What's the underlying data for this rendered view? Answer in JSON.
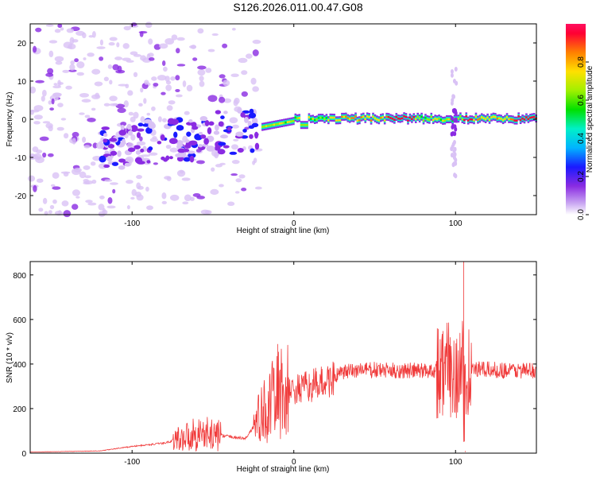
{
  "title": "S126.2026.011.00.47.G08",
  "colors": {
    "snr_line": "#f03a3a",
    "axes": "#000000"
  },
  "chart_data": [
    {
      "type": "heatmap",
      "name": "spectrogram",
      "xlabel": "Height of straight line (km)",
      "ylabel": "Frequency (Hz)",
      "xlim": [
        -163,
        150
      ],
      "ylim": [
        -25,
        25
      ],
      "xticks": [
        "-100",
        "0",
        "100"
      ],
      "xtick_values": [
        -100,
        0,
        100
      ],
      "yticks": [
        "-20",
        "-10",
        "0",
        "10",
        "20"
      ],
      "ytick_values": [
        -20,
        -10,
        0,
        10,
        20
      ],
      "colorbar": {
        "label": "Normalized spectral amplitude",
        "ticks": [
          "0.0",
          "0.2",
          "0.4",
          "0.6",
          "0.8"
        ],
        "tick_values": [
          0.0,
          0.2,
          0.4,
          0.6,
          0.8
        ],
        "range": [
          0.0,
          1.0
        ]
      },
      "features": {
        "noise_region_km": [
          -163,
          -20
        ],
        "rising_cluster_start": {
          "x": -120,
          "y": -8
        },
        "rising_cluster_end": {
          "x": -22,
          "y": -2
        },
        "carrier_line_km": [
          -20,
          150
        ],
        "carrier_freq_hz": [
          -2,
          1
        ],
        "burst_near_km": 99,
        "burst_freq_range_hz": [
          -15,
          14
        ]
      }
    },
    {
      "type": "line",
      "name": "snr",
      "xlabel": "Height of straight line (km)",
      "ylabel": "SNR (10 * v/v)",
      "xlim": [
        -163,
        150
      ],
      "ylim": [
        0,
        860
      ],
      "xticks": [
        "-100",
        "0",
        "100"
      ],
      "xtick_values": [
        -100,
        0,
        100
      ],
      "yticks": [
        "0",
        "200",
        "400",
        "600",
        "800"
      ],
      "ytick_values": [
        0,
        200,
        400,
        600,
        800
      ],
      "envelope": [
        {
          "x": -163,
          "y": 5
        },
        {
          "x": -120,
          "y": 10
        },
        {
          "x": -100,
          "y": 30
        },
        {
          "x": -80,
          "y": 45
        },
        {
          "x": -60,
          "y": 90
        },
        {
          "x": -45,
          "y": 80
        },
        {
          "x": -30,
          "y": 65
        },
        {
          "x": -20,
          "y": 170
        },
        {
          "x": -10,
          "y": 260
        },
        {
          "x": 0,
          "y": 280
        },
        {
          "x": 10,
          "y": 300
        },
        {
          "x": 20,
          "y": 320
        },
        {
          "x": 30,
          "y": 360
        },
        {
          "x": 40,
          "y": 375
        },
        {
          "x": 60,
          "y": 370
        },
        {
          "x": 80,
          "y": 370
        },
        {
          "x": 90,
          "y": 375
        },
        {
          "x": 100,
          "y": 370
        },
        {
          "x": 110,
          "y": 375
        },
        {
          "x": 150,
          "y": 370
        }
      ],
      "peaks": [
        {
          "x": -10,
          "y": 490
        },
        {
          "x": 105,
          "y": 860
        },
        {
          "x": 106,
          "y": 10
        }
      ]
    }
  ]
}
